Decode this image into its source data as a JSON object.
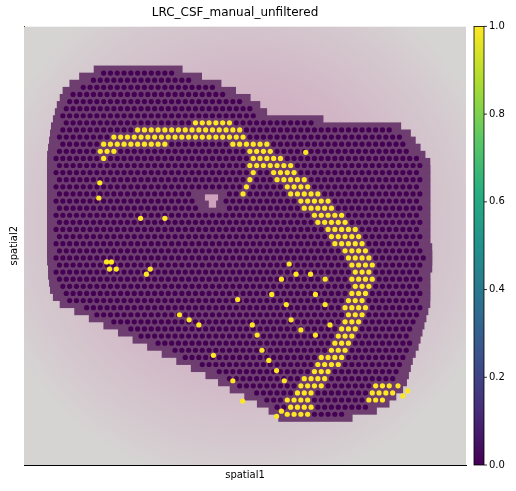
{
  "chart_data": {
    "type": "spatial_scatter",
    "title": "LRC_CSF_manual_unfiltered",
    "x_label": "spatial1",
    "y_label": "spatial2",
    "xlim": [
      30,
      485
    ],
    "ylim": [
      458,
      26
    ],
    "tick_labels": false,
    "grid": false,
    "spot_groups": [
      {
        "value": 0,
        "rows": [
          [
            72,
            [
              [
                110,
                185
              ]
            ]
          ],
          [
            79,
            [
              [
                95,
                205
              ]
            ]
          ],
          [
            86,
            [
              [
                85,
                225
              ]
            ]
          ],
          [
            93,
            [
              [
                78,
                240
              ]
            ]
          ],
          [
            100,
            [
              [
                75,
                255
              ]
            ]
          ],
          [
            107,
            [
              [
                72,
                265
              ]
            ]
          ],
          [
            114,
            [
              [
                70,
                272
              ]
            ]
          ],
          [
            121,
            [
              [
                68,
                330
              ]
            ]
          ],
          [
            128,
            [
              [
                66,
                410
              ]
            ]
          ],
          [
            135,
            [
              [
                65,
                420
              ]
            ]
          ],
          [
            142,
            [
              [
                64,
                425
              ]
            ]
          ],
          [
            149,
            [
              [
                63,
                430
              ]
            ]
          ],
          [
            156,
            [
              [
                62,
                435
              ]
            ]
          ],
          [
            163,
            [
              [
                62,
                440
              ]
            ]
          ],
          [
            170,
            [
              [
                62,
                440
              ]
            ]
          ],
          [
            177,
            [
              [
                62,
                440
              ]
            ]
          ],
          [
            184,
            [
              [
                62,
                440
              ]
            ]
          ],
          [
            191,
            [
              [
                62,
                205
              ],
              [
                240,
                440
              ]
            ]
          ],
          [
            198,
            [
              [
                62,
                208
              ],
              [
                238,
                440
              ]
            ]
          ],
          [
            205,
            [
              [
                62,
                212
              ],
              [
                236,
                440
              ]
            ]
          ],
          [
            212,
            [
              [
                62,
                440
              ]
            ]
          ],
          [
            219,
            [
              [
                62,
                440
              ]
            ]
          ],
          [
            226,
            [
              [
                62,
                440
              ]
            ]
          ],
          [
            233,
            [
              [
                62,
                440
              ]
            ]
          ],
          [
            240,
            [
              [
                62,
                440
              ]
            ]
          ],
          [
            247,
            [
              [
                62,
                442
              ]
            ]
          ],
          [
            254,
            [
              [
                62,
                442
              ]
            ]
          ],
          [
            261,
            [
              [
                63,
                442
              ]
            ]
          ],
          [
            268,
            [
              [
                63,
                440
              ]
            ]
          ],
          [
            275,
            [
              [
                64,
                440
              ]
            ]
          ],
          [
            282,
            [
              [
                65,
                440
              ]
            ]
          ],
          [
            289,
            [
              [
                68,
                440
              ]
            ]
          ],
          [
            296,
            [
              [
                75,
                440
              ]
            ]
          ],
          [
            303,
            [
              [
                90,
                438
              ]
            ]
          ],
          [
            310,
            [
              [
                105,
                436
              ]
            ]
          ],
          [
            317,
            [
              [
                120,
                434
              ]
            ]
          ],
          [
            324,
            [
              [
                135,
                432
              ]
            ]
          ],
          [
            331,
            [
              [
                150,
                430
              ]
            ]
          ],
          [
            338,
            [
              [
                165,
                428
              ]
            ]
          ],
          [
            345,
            [
              [
                180,
                425
              ]
            ]
          ],
          [
            352,
            [
              [
                195,
                422
              ]
            ]
          ],
          [
            359,
            [
              [
                210,
                420
              ]
            ]
          ],
          [
            366,
            [
              [
                225,
                418
              ]
            ]
          ],
          [
            373,
            [
              [
                238,
                416
              ]
            ]
          ],
          [
            380,
            [
              [
                250,
                412
              ]
            ]
          ],
          [
            387,
            [
              [
                265,
                405
              ]
            ]
          ],
          [
            394,
            [
              [
                278,
                398
              ]
            ]
          ],
          [
            401,
            [
              [
                290,
                385
              ]
            ]
          ],
          [
            408,
            [
              [
                300,
                360
              ]
            ]
          ]
        ]
      },
      {
        "value": 1,
        "rows": [
          [
            121,
            [
              [
                200,
                242
              ]
            ]
          ],
          [
            128,
            [
              [
                145,
                252
              ]
            ]
          ],
          [
            135,
            [
              [
                118,
                262
              ]
            ]
          ],
          [
            142,
            [
              [
                108,
                175
              ],
              [
                240,
                280
              ]
            ]
          ],
          [
            149,
            [
              [
                105,
                125
              ],
              [
                262,
                290
              ]
            ]
          ],
          [
            156,
            [
              [
                106,
                118
              ],
              [
                265,
                298
              ]
            ]
          ],
          [
            163,
            [
              [
                262,
                270
              ],
              [
                275,
                305
              ]
            ]
          ],
          [
            170,
            [
              [
                260,
                268
              ],
              [
                282,
                312
              ]
            ]
          ],
          [
            177,
            [
              [
                258,
                266
              ],
              [
                290,
                320
              ]
            ]
          ],
          [
            184,
            [
              [
                256,
                264
              ],
              [
                296,
                328
              ]
            ]
          ],
          [
            191,
            [
              [
                255,
                262
              ],
              [
                302,
                336
              ]
            ]
          ],
          [
            198,
            [
              [
                310,
                345
              ]
            ]
          ],
          [
            205,
            [
              [
                318,
                352
              ]
            ]
          ],
          [
            212,
            [
              [
                325,
                360
              ]
            ]
          ],
          [
            219,
            [
              [
                332,
                366
              ]
            ]
          ],
          [
            226,
            [
              [
                340,
                372
              ]
            ]
          ],
          [
            233,
            [
              [
                345,
                378
              ]
            ]
          ],
          [
            240,
            [
              [
                350,
                382
              ]
            ]
          ],
          [
            247,
            [
              [
                355,
                385
              ]
            ]
          ],
          [
            254,
            [
              [
                358,
                388
              ]
            ]
          ],
          [
            261,
            [
              [
                362,
                390
              ]
            ]
          ],
          [
            268,
            [
              [
                365,
                390
              ]
            ]
          ],
          [
            275,
            [
              [
                366,
                390
              ]
            ]
          ],
          [
            282,
            [
              [
                366,
                388
              ]
            ]
          ],
          [
            289,
            [
              [
                365,
                386
              ]
            ]
          ],
          [
            296,
            [
              [
                364,
                384
              ]
            ]
          ],
          [
            303,
            [
              [
                360,
                382
              ]
            ]
          ],
          [
            310,
            [
              [
                358,
                380
              ]
            ]
          ],
          [
            317,
            [
              [
                355,
                377
              ]
            ]
          ],
          [
            324,
            [
              [
                352,
                374
              ]
            ]
          ],
          [
            331,
            [
              [
                348,
                370
              ]
            ]
          ],
          [
            338,
            [
              [
                344,
                366
              ]
            ]
          ],
          [
            345,
            [
              [
                340,
                362
              ]
            ]
          ],
          [
            352,
            [
              [
                335,
                358
              ]
            ]
          ],
          [
            359,
            [
              [
                330,
                354
              ]
            ]
          ],
          [
            366,
            [
              [
                325,
                348
              ]
            ]
          ],
          [
            373,
            [
              [
                318,
                342
              ]
            ]
          ],
          [
            380,
            [
              [
                312,
                336
              ],
              [
                392,
                408
              ]
            ]
          ],
          [
            387,
            [
              [
                305,
                330
              ],
              [
                385,
                412
              ]
            ]
          ],
          [
            394,
            [
              [
                300,
                322
              ],
              [
                380,
                405
              ]
            ]
          ],
          [
            401,
            [
              [
                298,
                330
              ]
            ]
          ],
          [
            408,
            [
              [
                300,
                325
              ]
            ]
          ]
        ],
        "points": [
          [
            115,
            258
          ],
          [
            120,
            258
          ],
          [
            118,
            265
          ],
          [
            125,
            265
          ],
          [
            156,
            270
          ],
          [
            160,
            265
          ],
          [
            150,
            215
          ],
          [
            175,
            215
          ],
          [
            107,
            195
          ],
          [
            108,
            180
          ],
          [
            265,
            320
          ],
          [
            270,
            330
          ],
          [
            275,
            345
          ],
          [
            282,
            355
          ],
          [
            290,
            365
          ],
          [
            298,
            375
          ],
          [
            250,
            295
          ],
          [
            285,
            290
          ],
          [
            300,
            300
          ],
          [
            305,
            315
          ],
          [
            315,
            325
          ],
          [
            330,
            290
          ],
          [
            340,
            300
          ],
          [
            325,
            270
          ],
          [
            330,
            330
          ],
          [
            290,
            410
          ],
          [
            295,
            405
          ],
          [
            190,
            310
          ],
          [
            200,
            315
          ],
          [
            210,
            320
          ],
          [
            225,
            350
          ],
          [
            245,
            375
          ],
          [
            255,
            395
          ],
          [
            320,
            150
          ],
          [
            340,
            275
          ],
          [
            345,
            320
          ],
          [
            295,
            275
          ],
          [
            303,
            260
          ],
          [
            310,
            270
          ],
          [
            420,
            390
          ],
          [
            425,
            385
          ],
          [
            415,
            380
          ]
        ]
      }
    ],
    "color_bar": {
      "range": [
        0,
        1
      ],
      "ticks": [
        {
          "value": 0,
          "label": "0.0"
        },
        {
          "value": 0.2,
          "label": "0.2"
        },
        {
          "value": 0.4,
          "label": "0.4"
        },
        {
          "value": 0.6,
          "label": "0.6"
        },
        {
          "value": 0.8,
          "label": "0.8"
        },
        {
          "value": 1,
          "label": "1.0"
        }
      ]
    }
  }
}
